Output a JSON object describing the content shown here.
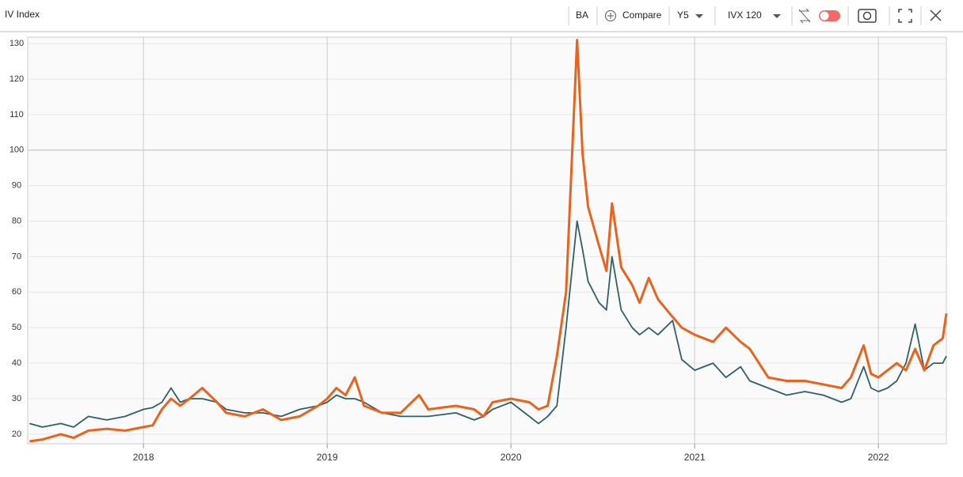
{
  "toolbar": {
    "symbol": "BA",
    "compare": "Compare",
    "period": "Y5",
    "measure": "IVX 120"
  },
  "chart_data": {
    "type": "line",
    "title": "IV Index",
    "x": [
      2017.38,
      2017.45,
      2017.55,
      2017.62,
      2017.7,
      2017.8,
      2017.9,
      2018.0,
      2018.05,
      2018.1,
      2018.15,
      2018.2,
      2018.25,
      2018.32,
      2018.4,
      2018.45,
      2018.55,
      2018.65,
      2018.75,
      2018.85,
      2018.95,
      2019.0,
      2019.05,
      2019.1,
      2019.15,
      2019.2,
      2019.3,
      2019.4,
      2019.5,
      2019.55,
      2019.7,
      2019.8,
      2019.85,
      2019.9,
      2020.0,
      2020.1,
      2020.15,
      2020.2,
      2020.25,
      2020.3,
      2020.36,
      2020.39,
      2020.42,
      2020.48,
      2020.52,
      2020.55,
      2020.6,
      2020.66,
      2020.7,
      2020.75,
      2020.8,
      2020.88,
      2020.93,
      2021.0,
      2021.1,
      2021.17,
      2021.25,
      2021.3,
      2021.4,
      2021.5,
      2021.6,
      2021.7,
      2021.8,
      2021.85,
      2021.92,
      2021.96,
      2022.0,
      2022.05,
      2022.1,
      2022.15,
      2022.2,
      2022.25,
      2022.3,
      2022.35,
      2022.37
    ],
    "series": [
      {
        "color": "#e8641e",
        "values": [
          18,
          18.5,
          20,
          19,
          21,
          21.5,
          21,
          22,
          22.5,
          27,
          30,
          28,
          30,
          33,
          29,
          26,
          25,
          27,
          24,
          25,
          28,
          30,
          33,
          31,
          36,
          28,
          26,
          26,
          31,
          27,
          28,
          27,
          25,
          29,
          30,
          29,
          27,
          28,
          42,
          60,
          131,
          99,
          84,
          73,
          66,
          85,
          67,
          62,
          57,
          64,
          58,
          53,
          50,
          48,
          46,
          50,
          46,
          44,
          36,
          35,
          35,
          34,
          33,
          36,
          45,
          37,
          36,
          38,
          40,
          38,
          44,
          38,
          45,
          47,
          54
        ]
      },
      {
        "color": "#2f5f67",
        "values": [
          23,
          22,
          23,
          22,
          25,
          24,
          25,
          27,
          27.5,
          29,
          33,
          29,
          30,
          30,
          29,
          27,
          26,
          26,
          25,
          27,
          28,
          29,
          31,
          30,
          30,
          29,
          26,
          25,
          25,
          25,
          26,
          24,
          25,
          27,
          29,
          25,
          23,
          25,
          28,
          50,
          80,
          72,
          63,
          57,
          55,
          70,
          55,
          50,
          48,
          50,
          48,
          52,
          41,
          38,
          40,
          36,
          39,
          35,
          33,
          31,
          32,
          31,
          29,
          30,
          39,
          33,
          32,
          33,
          35,
          40,
          51,
          38,
          40,
          40,
          42
        ]
      }
    ],
    "xlim": [
      2017.37,
      2022.37
    ],
    "xticks": [
      2018,
      2019,
      2020,
      2021,
      2022
    ],
    "ylim": [
      17.3,
      131.8
    ],
    "yticks": [
      20,
      30,
      40,
      50,
      60,
      70,
      80,
      90,
      100,
      110,
      120,
      130
    ],
    "grid": true
  }
}
